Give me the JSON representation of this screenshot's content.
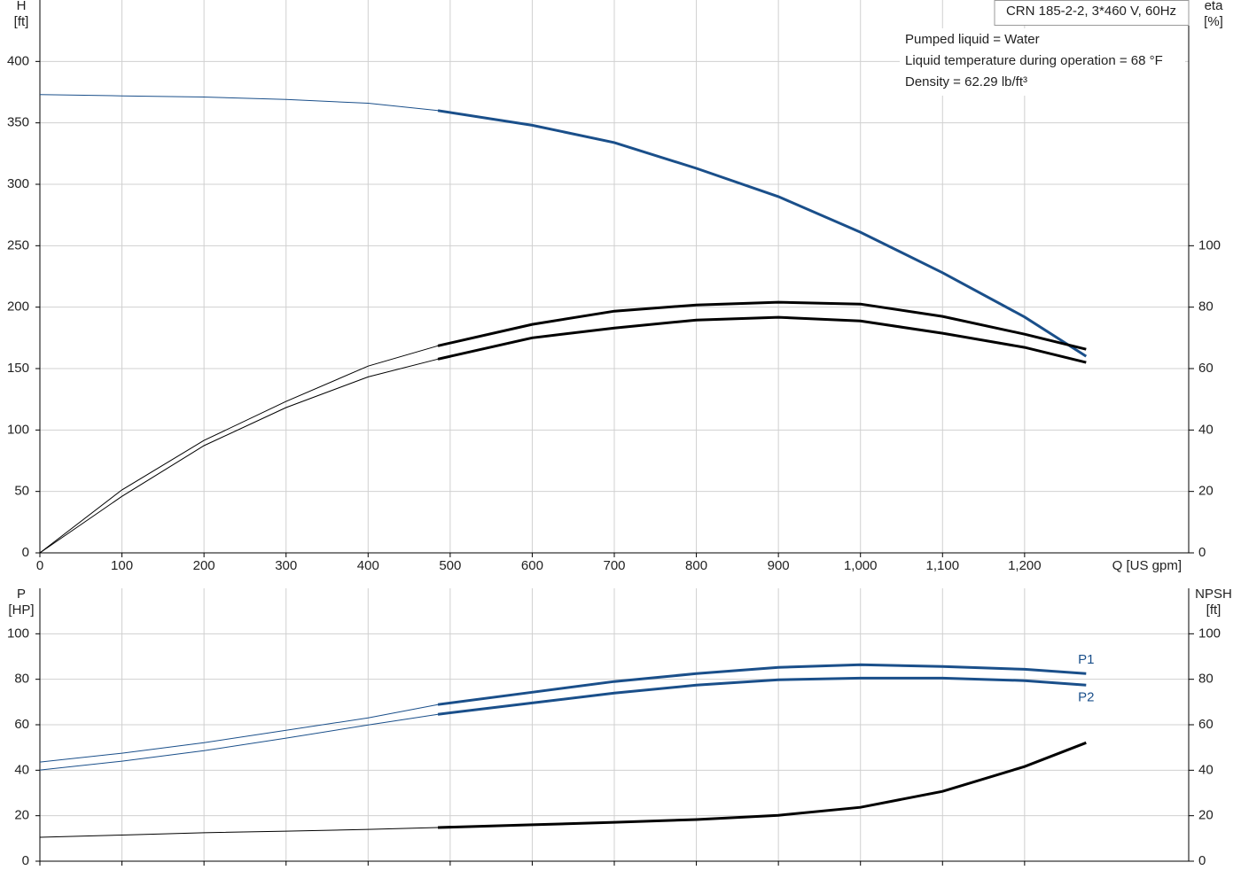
{
  "chart_data": [
    {
      "type": "line",
      "title": "CRN 185-2-2, 3*460 V, 60Hz",
      "annotations": [
        "Pumped liquid = Water",
        "Liquid temperature during operation = 68 °F",
        "Density = 62.29 lb/ft³"
      ],
      "ylabel": [
        "H",
        "[ft]"
      ],
      "y2label": [
        "eta",
        "[%]"
      ],
      "xlabel": "Q [US gpm]",
      "xlim": [
        0,
        1400
      ],
      "xticks": [
        0,
        100,
        200,
        300,
        400,
        500,
        600,
        700,
        800,
        900,
        {
          "value": 1000,
          "label": "1,000"
        },
        {
          "value": 1100,
          "label": "1,100"
        },
        {
          "value": 1200,
          "label": "1,200"
        }
      ],
      "ylim": [
        0,
        450
      ],
      "yticks": [
        0,
        50,
        100,
        150,
        200,
        250,
        300,
        350,
        400
      ],
      "y2lim": [
        0,
        180
      ],
      "y2ticks": [
        0,
        20,
        40,
        60,
        80,
        100
      ],
      "grid": true,
      "duty_range": [
        485,
        1275
      ],
      "series": [
        {
          "color": "#1a4f8a",
          "x": [
            0,
            100,
            200,
            300,
            400,
            485,
            600,
            700,
            800,
            900,
            1000,
            1100,
            1200,
            1275
          ],
          "values": [
            373,
            372,
            371,
            369,
            366,
            360,
            348,
            334,
            313,
            290,
            261,
            228,
            192,
            160
          ]
        },
        {
          "color": "#000000",
          "axis": "y2",
          "x": [
            0,
            100,
            200,
            300,
            400,
            485,
            600,
            700,
            800,
            900,
            1000,
            1100,
            1200,
            1275
          ],
          "values": [
            0,
            20.5,
            36.6,
            49.3,
            60.8,
            67.4,
            74.4,
            78.7,
            80.7,
            81.6,
            81,
            77,
            71.2,
            66.3
          ]
        },
        {
          "color": "#000000",
          "axis": "y2",
          "x": [
            0,
            100,
            200,
            300,
            400,
            485,
            600,
            700,
            800,
            900,
            1000,
            1100,
            1200,
            1275
          ],
          "values": [
            0,
            18.4,
            34.9,
            47.3,
            57.3,
            63.1,
            70,
            73.2,
            75.8,
            76.7,
            75.5,
            71.5,
            66.9,
            62
          ]
        }
      ]
    },
    {
      "type": "line",
      "ylabel": [
        "P",
        "[HP]"
      ],
      "y2label": [
        "NPSH",
        "[ft]"
      ],
      "xlim": [
        0,
        1400
      ],
      "ylim": [
        0,
        120
      ],
      "yticks": [
        0,
        20,
        40,
        60,
        80,
        100
      ],
      "y2lim": [
        0,
        120
      ],
      "y2ticks": [
        0,
        20,
        40,
        60,
        80,
        100
      ],
      "grid": true,
      "duty_range": [
        485,
        1275
      ],
      "series": [
        {
          "name": "P1",
          "color": "#1a4f8a",
          "x": [
            0,
            100,
            200,
            300,
            400,
            485,
            600,
            700,
            800,
            900,
            1000,
            1100,
            1200,
            1275
          ],
          "values": [
            43.6,
            47.5,
            52.1,
            57.6,
            63,
            68.9,
            74.3,
            79,
            82.5,
            85.2,
            86.4,
            85.6,
            84.4,
            82.5
          ]
        },
        {
          "name": "P2",
          "color": "#1a4f8a",
          "x": [
            0,
            100,
            200,
            300,
            400,
            485,
            600,
            700,
            800,
            900,
            1000,
            1100,
            1200,
            1275
          ],
          "values": [
            40.1,
            44,
            48.6,
            54.1,
            59.9,
            64.6,
            69.6,
            73.9,
            77.4,
            79.8,
            80.5,
            80.5,
            79.4,
            77.4
          ]
        },
        {
          "color": "#000000",
          "axis": "y2",
          "x": [
            0,
            100,
            200,
            300,
            400,
            485,
            600,
            700,
            800,
            900,
            1000,
            1100,
            1200,
            1275
          ],
          "values": [
            10.5,
            11.5,
            12.5,
            13.2,
            14,
            14.8,
            16,
            17.1,
            18.3,
            20.2,
            23.7,
            30.7,
            41.6,
            52.1
          ]
        }
      ]
    }
  ]
}
